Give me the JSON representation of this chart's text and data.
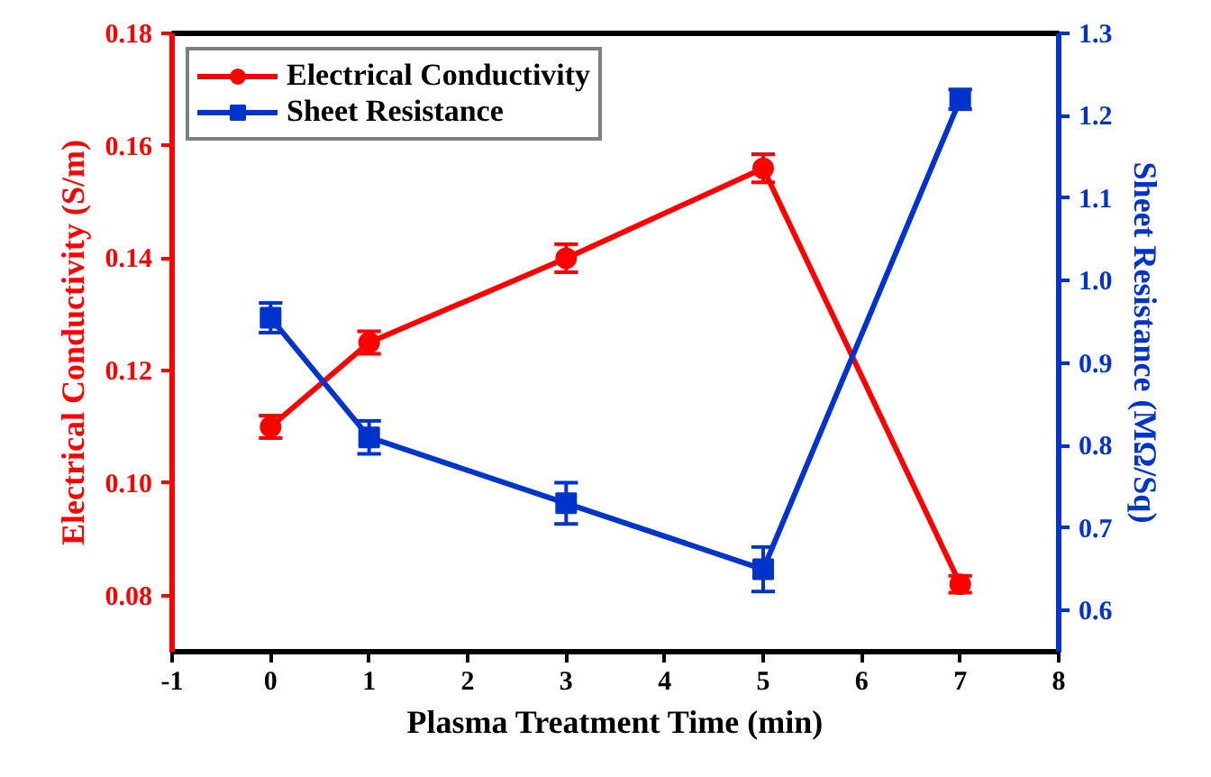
{
  "chart_data": {
    "type": "line",
    "xlabel": "Plasma Treatment Time (min)",
    "ylabel": "Electrical Conductivity (S/m)",
    "y2label": "Sheet Resistance (MΩ/Sq)",
    "xlim": [
      -1,
      8
    ],
    "xticks": [
      -1,
      0,
      1,
      2,
      3,
      4,
      5,
      6,
      7,
      8
    ],
    "ylim": [
      0.07,
      0.18
    ],
    "yticks": [
      0.08,
      {
        "value": 0.1,
        "label": "0.10"
      },
      0.12,
      0.14,
      0.16,
      0.18
    ],
    "y2lim": [
      0.55,
      1.3
    ],
    "y2ticks": [
      0.6,
      0.7,
      0.8,
      0.9,
      {
        "value": 1,
        "label": "1.0"
      },
      1.1,
      1.2,
      1.3
    ],
    "legend": "top left",
    "grid": false,
    "series": [
      {
        "name": "Electrical Conductivity",
        "color": "#ff0000",
        "marker": "circle",
        "x": [
          0,
          1,
          3,
          5,
          7
        ],
        "values": [
          0.11,
          0.125,
          0.14,
          0.156,
          0.082
        ],
        "errors": [
          0.002,
          0.002,
          0.0025,
          0.0025,
          0.0015
        ]
      },
      {
        "name": "Sheet Resistance",
        "color": "#0033cc",
        "marker": "square",
        "axis": "y2",
        "x": [
          0,
          1,
          3,
          5,
          7
        ],
        "values": [
          0.955,
          0.81,
          0.73,
          0.65,
          1.22
        ],
        "errors": [
          0.018,
          0.02,
          0.025,
          0.027,
          0.012
        ]
      }
    ]
  }
}
